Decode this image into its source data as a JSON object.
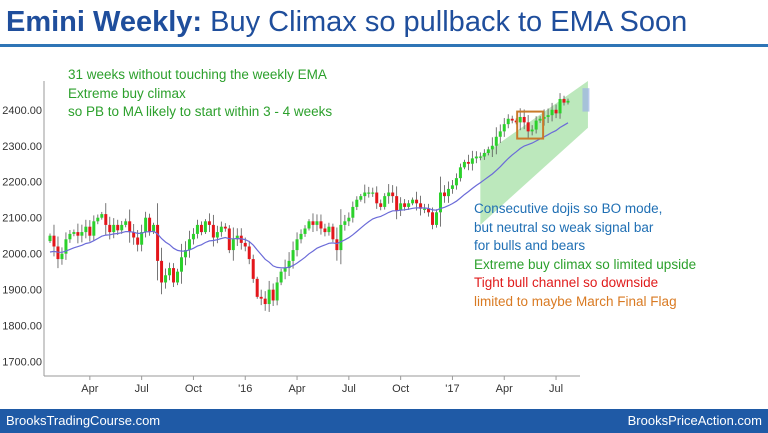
{
  "title": {
    "lead": "Emini Weekly:",
    "rest": "Buy Climax so pullback to EMA Soon"
  },
  "annotations": {
    "top_lines": [
      "31 weeks without touching the weekly EMA",
      "Extreme buy climax",
      "so PB to MA likely to start within 3 - 4 weeks"
    ],
    "right_lines": [
      {
        "text": "Consecutive dojis so BO mode,",
        "color": "blue"
      },
      {
        "text": "but neutral so weak signal bar",
        "color": "blue"
      },
      {
        "text": "for bulls and bears",
        "color": "blue"
      },
      {
        "text": "Extreme buy climax so limited upside",
        "color": "green"
      },
      {
        "text": "Tight bull channel so downside",
        "color": "red"
      },
      {
        "text": "limited to maybe March Final Flag",
        "color": "orange"
      }
    ]
  },
  "footer": {
    "left": "BrooksTradingCourse.com",
    "right": "BrooksPriceAction.com"
  },
  "colors": {
    "bull": "#2bd12b",
    "bear": "#e3161b",
    "ema": "#6b6bd8",
    "channel": "#8fd98f",
    "box": "#c97a2a",
    "last_bar_highlight": "#9fb5e3",
    "title": "#1f4e9c",
    "footer_bg": "#1f5aa6"
  },
  "chart_data": {
    "type": "candlestick",
    "y_ticks": [
      1700,
      1800,
      1900,
      2000,
      2100,
      2200,
      2300,
      2400
    ],
    "y_tick_labels": [
      "1700.00",
      "1800.00",
      "1900.00",
      "2000.00",
      "2100.00",
      "2200.00",
      "2300.00",
      "2400.00"
    ],
    "ylim": [
      1660,
      2480
    ],
    "x_tick_labels": [
      "Apr",
      "Jul",
      "Oct",
      "'16",
      "Apr",
      "Jul",
      "Oct",
      "'17",
      "Apr",
      "Jul"
    ],
    "x_tick_positions": [
      10,
      23,
      36,
      49,
      62,
      75,
      88,
      101,
      114,
      127
    ],
    "x_count": 131,
    "grid": false,
    "closes": [
      2050,
      2020,
      1985,
      2000,
      2040,
      2055,
      2060,
      2050,
      2060,
      2075,
      2050,
      2090,
      2100,
      2110,
      2080,
      2060,
      2080,
      2065,
      2080,
      2090,
      2060,
      2045,
      2025,
      2060,
      2100,
      2060,
      2080,
      1980,
      1920,
      1940,
      1960,
      1920,
      1950,
      1990,
      2010,
      2040,
      2055,
      2080,
      2060,
      2090,
      2080,
      2045,
      2060,
      2075,
      2070,
      2010,
      2040,
      2050,
      2030,
      2020,
      1985,
      1930,
      1880,
      1875,
      1860,
      1900,
      1870,
      1920,
      1950,
      1960,
      1980,
      2010,
      2040,
      2055,
      2070,
      2090,
      2080,
      2090,
      2070,
      2060,
      2075,
      2040,
      2010,
      2080,
      2090,
      2100,
      2130,
      2150,
      2160,
      2170,
      2170,
      2170,
      2140,
      2130,
      2160,
      2170,
      2160,
      2120,
      2140,
      2130,
      2140,
      2150,
      2140,
      2125,
      2125,
      2115,
      2080,
      2115,
      2170,
      2160,
      2180,
      2190,
      2210,
      2240,
      2255,
      2250,
      2265,
      2270,
      2270,
      2280,
      2290,
      2300,
      2325,
      2340,
      2360,
      2375,
      2370,
      2365,
      2380,
      2365,
      2340,
      2345,
      2370,
      2375,
      2380,
      2385,
      2400,
      2390,
      2430,
      2420,
      2425
    ],
    "ema_start": 2000,
    "channel": {
      "x_from": 108,
      "x_to": 135,
      "lower_from": 2080,
      "lower_to": 2350,
      "upper_from": 2270,
      "upper_to": 2480
    },
    "box": {
      "x_from": 118,
      "x_to": 123,
      "low": 2320,
      "high": 2395
    },
    "highlight": {
      "x_from": 134,
      "x_to": 135,
      "low": 2395,
      "high": 2460
    }
  }
}
